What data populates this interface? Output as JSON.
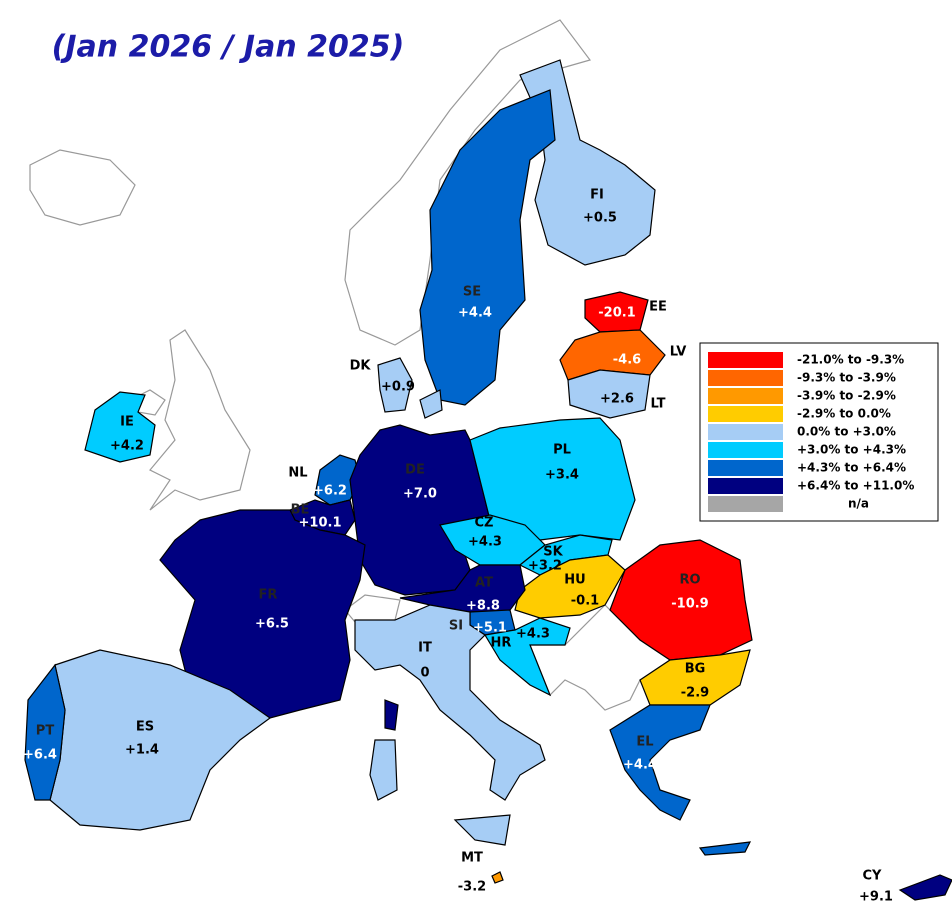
{
  "title": "(Jan 2026 / Jan 2025)",
  "legend": [
    {
      "label": "-21.0%  to  -9.3%",
      "color": "#ff0000"
    },
    {
      "label": "-9.3%  to  -3.9%",
      "color": "#ff6600"
    },
    {
      "label": "-3.9%  to  -2.9%",
      "color": "#ff9900"
    },
    {
      "label": "-2.9%  to  0.0%",
      "color": "#ffcc00"
    },
    {
      "label": "0.0%  to  +3.0%",
      "color": "#a6cdf5"
    },
    {
      "label": "+3.0%  to  +4.3%",
      "color": "#00ccff"
    },
    {
      "label": "+4.3%  to  +6.4%",
      "color": "#0066cc"
    },
    {
      "label": "+6.4%  to  +11.0%",
      "color": "#000080"
    },
    {
      "label": "n/a",
      "color": "#a6a6a6"
    }
  ],
  "countries": [
    {
      "code": "FI",
      "value": "+0.5",
      "color": "#a6cdf5"
    },
    {
      "code": "SE",
      "value": "+4.4",
      "color": "#0066cc"
    },
    {
      "code": "EE",
      "value": "-20.1",
      "color": "#ff0000"
    },
    {
      "code": "LV",
      "value": "-4.6",
      "color": "#ff6600"
    },
    {
      "code": "LT",
      "value": "+2.6",
      "color": "#a6cdf5"
    },
    {
      "code": "DK",
      "value": "+0.9",
      "color": "#a6cdf5"
    },
    {
      "code": "IE",
      "value": "+4.2",
      "color": "#00ccff"
    },
    {
      "code": "NL",
      "value": "+6.2",
      "color": "#0066cc"
    },
    {
      "code": "BE",
      "value": "+10.1",
      "color": "#000080"
    },
    {
      "code": "DE",
      "value": "+7.0",
      "color": "#000080"
    },
    {
      "code": "PL",
      "value": "+3.4",
      "color": "#00ccff"
    },
    {
      "code": "CZ",
      "value": "+4.3",
      "color": "#00ccff"
    },
    {
      "code": "SK",
      "value": "+3.2",
      "color": "#00ccff"
    },
    {
      "code": "HU",
      "value": "-0.1",
      "color": "#ffcc00"
    },
    {
      "code": "RO",
      "value": "-10.9",
      "color": "#ff0000"
    },
    {
      "code": "AT",
      "value": "+8.8",
      "color": "#000080"
    },
    {
      "code": "SI",
      "value": "+5.1",
      "color": "#0066cc"
    },
    {
      "code": "HR",
      "value": "+4.3",
      "color": "#00ccff"
    },
    {
      "code": "IT",
      "value": "0",
      "color": "#a6cdf5"
    },
    {
      "code": "FR",
      "value": "+6.5",
      "color": "#000080"
    },
    {
      "code": "BG",
      "value": "-2.9",
      "color": "#ffcc00"
    },
    {
      "code": "EL",
      "value": "+4.4",
      "color": "#0066cc"
    },
    {
      "code": "ES",
      "value": "+1.4",
      "color": "#a6cdf5"
    },
    {
      "code": "PT",
      "value": "+6.4",
      "color": "#0066cc"
    },
    {
      "code": "MT",
      "value": "-3.2",
      "color": "#ff9900"
    },
    {
      "code": "CY",
      "value": "+9.1",
      "color": "#000080"
    }
  ]
}
